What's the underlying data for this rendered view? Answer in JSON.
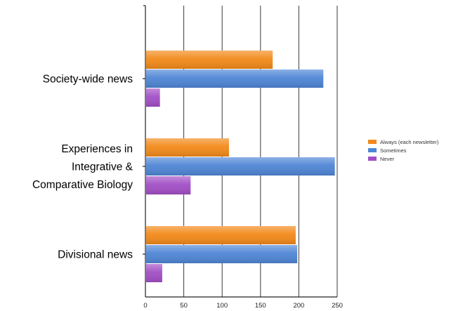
{
  "chart_data": {
    "type": "bar",
    "orientation": "horizontal",
    "categories": [
      [
        "Society-wide news"
      ],
      [
        "Experiences in",
        "Integrative &",
        "Comparative Biology"
      ],
      [
        "Divisional news"
      ]
    ],
    "series": [
      {
        "name": "Always (each newsletter)",
        "color": "#f28a1a",
        "values": [
          165,
          108,
          195
        ]
      },
      {
        "name": "Sometimes",
        "color": "#4f86d6",
        "values": [
          231,
          246,
          197
        ]
      },
      {
        "name": "Never",
        "color": "#a24fc6",
        "values": [
          18,
          58,
          21
        ]
      }
    ],
    "xlim": [
      0,
      250
    ],
    "xticks": [
      0,
      50,
      100,
      150,
      200,
      250
    ],
    "grid": true,
    "legend_position": "right"
  }
}
